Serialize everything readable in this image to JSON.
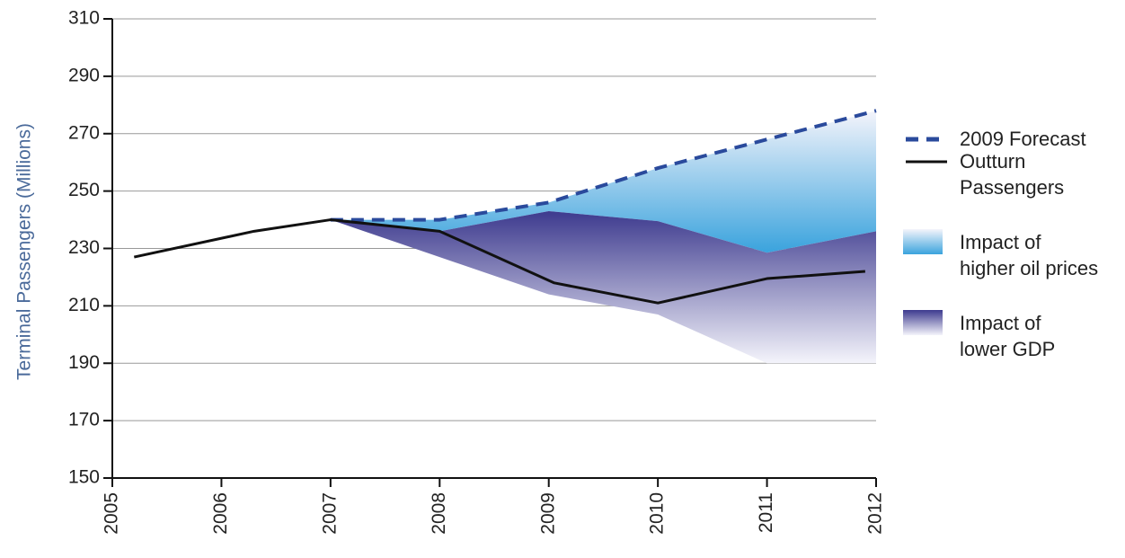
{
  "chart_data": {
    "type": "line",
    "y_label": "Terminal Passengers (Millions)",
    "xlim": [
      2005,
      2012
    ],
    "xticks": [
      2005,
      2006,
      2007,
      2008,
      2009,
      2010,
      2011,
      2012
    ],
    "ylim": [
      150,
      310
    ],
    "yticks": [
      150,
      170,
      190,
      210,
      230,
      250,
      270,
      290,
      310
    ],
    "grid": true,
    "series": [
      {
        "name": "Impact of\nhigher oil prices",
        "kind": "band",
        "fade": "top",
        "color": "#3aa3dd",
        "x": [
          2007,
          2008,
          2009,
          2010,
          2011,
          2012
        ],
        "upper": [
          240,
          240,
          246,
          258,
          268,
          278
        ],
        "lower": [
          240,
          236,
          243,
          239.5,
          228.5,
          236
        ]
      },
      {
        "name": "Impact of\nlower GDP",
        "kind": "band",
        "fade": "bottom",
        "color": "#3d3a8e",
        "x": [
          2007,
          2008,
          2009,
          2010,
          2011,
          2012
        ],
        "upper": [
          240,
          236,
          243,
          239.5,
          228.5,
          236
        ],
        "lower": [
          240,
          227,
          214,
          207,
          190,
          190
        ]
      },
      {
        "name": "2009 Forecast",
        "kind": "line",
        "dashed": true,
        "color": "#2a4a9c",
        "x": [
          2007,
          2008,
          2009,
          2010,
          2011,
          2012
        ],
        "values": [
          240,
          240,
          246,
          258,
          268,
          278
        ]
      },
      {
        "name": "Outturn\nPassengers",
        "kind": "line",
        "dashed": false,
        "color": "#111111",
        "x": [
          2005.2,
          2006.3,
          2007,
          2008,
          2009.05,
          2010,
          2011,
          2011.9
        ],
        "values": [
          227,
          236,
          240,
          236,
          218,
          211,
          219.5,
          222
        ]
      }
    ]
  }
}
